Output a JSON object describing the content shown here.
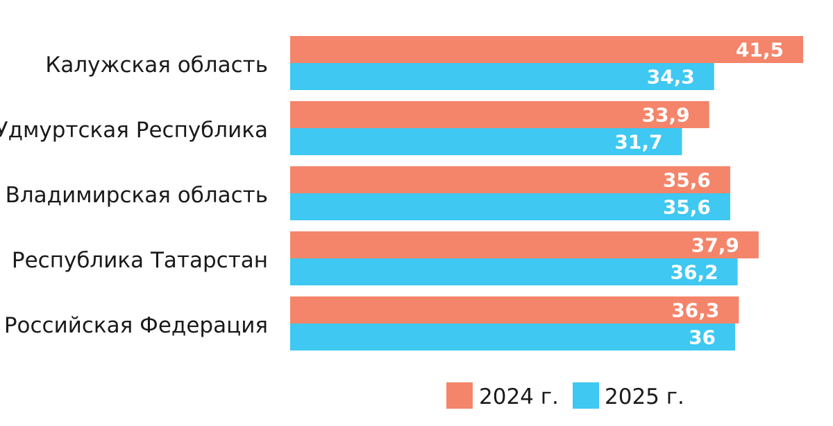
{
  "chart_data": {
    "type": "bar",
    "orientation": "horizontal",
    "categories": [
      "Калужская область",
      "Удмуртская Республика",
      "Владимирская область",
      "Республика Татарстан",
      "Российская Федерация"
    ],
    "series": [
      {
        "name": "2024 г.",
        "color": "#f4856a",
        "values": [
          41.5,
          33.9,
          35.6,
          37.9,
          36.3
        ],
        "labels": [
          "41,5",
          "33,9",
          "35,6",
          "37,9",
          "36,3"
        ]
      },
      {
        "name": "2025 г.",
        "color": "#3ec8f2",
        "values": [
          34.3,
          31.7,
          35.6,
          36.2,
          36
        ],
        "labels": [
          "34,3",
          "31,7",
          "35,6",
          "36,2",
          "36"
        ]
      }
    ],
    "xlim": [
      0,
      41.5
    ],
    "grid": false,
    "legend_position": "bottom-right"
  }
}
